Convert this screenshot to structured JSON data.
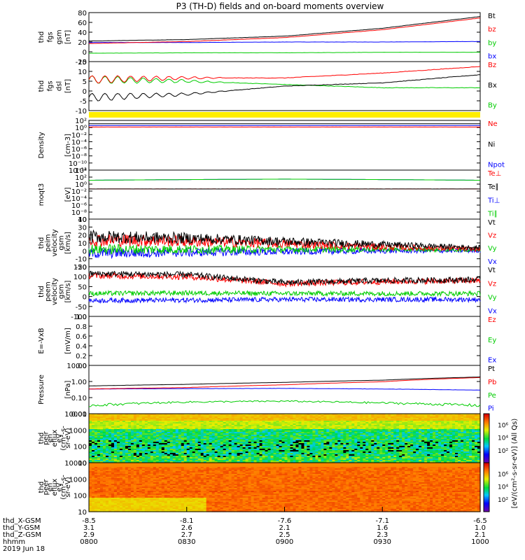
{
  "title": "P3 (TH-D) fields and on-board moments overview",
  "colors": {
    "black": "#000000",
    "red": "#ff0000",
    "green": "#00cc00",
    "blue": "#0000ff",
    "yellow": "#ffee00"
  },
  "panels": [
    {
      "id": "fgs-gsm",
      "ylabel": [
        "thd",
        "fgs",
        "gsm",
        "[nT]"
      ],
      "ticks": [
        "80",
        "60",
        "40",
        "20",
        "0",
        "-20"
      ],
      "legend": [
        {
          "text": "Bt",
          "color": "#000000"
        },
        {
          "text": "bz",
          "color": "#ff0000"
        },
        {
          "text": "by",
          "color": "#00cc00"
        },
        {
          "text": "bx",
          "color": "#0000ff"
        }
      ]
    },
    {
      "id": "fgs-dsl",
      "ylabel": [
        "thd",
        "fgs",
        "dsl",
        "[nT]"
      ],
      "ticks": [
        "15",
        "10",
        "5",
        "0",
        "-5",
        "-10"
      ],
      "legend": [
        {
          "text": "Bz",
          "color": "#ff0000"
        },
        {
          "text": "Bx",
          "color": "#000000"
        },
        {
          "text": "By",
          "color": "#00cc00"
        }
      ]
    },
    {
      "id": "density",
      "ylabel": [
        "Density",
        "[cm-3]"
      ],
      "ticks": [
        "10²",
        "10⁰",
        "10⁻²",
        "10⁻⁴",
        "10⁻⁶",
        "10⁻⁸",
        "10⁻¹⁰",
        "10⁻¹²"
      ],
      "legend": [
        {
          "text": "Ne",
          "color": "#ff0000"
        },
        {
          "text": "Ni",
          "color": "#000000"
        },
        {
          "text": "Npot",
          "color": "#0000ff"
        }
      ]
    },
    {
      "id": "temperature",
      "ylabel": [
        "moqt3",
        "[eV]"
      ],
      "ticks": [
        "10⁴",
        "10²",
        "10⁰",
        "10⁻²",
        "10⁻⁴",
        "10⁻⁶",
        "10⁻⁸",
        "10"
      ],
      "legend": [
        {
          "text": "Te⊥",
          "color": "#ff0000"
        },
        {
          "text": "Te∥",
          "color": "#000000"
        },
        {
          "text": "Ti⊥",
          "color": "#0000ff"
        },
        {
          "text": "Ti∥",
          "color": "#00cc00"
        }
      ]
    },
    {
      "id": "peim-velocity",
      "ylabel": [
        "thd",
        "peim",
        "velocity",
        "gsm",
        "[km/s]"
      ],
      "ticks": [
        "40",
        "30",
        "20",
        "10",
        "0",
        "-10",
        "-20"
      ],
      "legend": [
        {
          "text": "Vt",
          "color": "#000000"
        },
        {
          "text": "Vz",
          "color": "#ff0000"
        },
        {
          "text": "Vy",
          "color": "#00cc00"
        },
        {
          "text": "Vx",
          "color": "#0000ff"
        }
      ]
    },
    {
      "id": "peem-velocity",
      "ylabel": [
        "thd",
        "peem",
        "velocity",
        "gsm",
        "[km/s]"
      ],
      "ticks": [
        "150",
        "100",
        "50",
        "0",
        "-50",
        "-100"
      ],
      "legend": [
        {
          "text": "Vt",
          "color": "#000000"
        },
        {
          "text": "Vz",
          "color": "#ff0000"
        },
        {
          "text": "Vy",
          "color": "#00cc00"
        },
        {
          "text": "Vx",
          "color": "#0000ff"
        }
      ]
    },
    {
      "id": "efield",
      "ylabel": [
        "E=-VxB",
        "[mV/m]"
      ],
      "ticks": [
        "1.0",
        "0.8",
        "0.6",
        "0.4",
        "0.2",
        "0.0"
      ],
      "legend": [
        {
          "text": "Ez",
          "color": "#ff0000"
        },
        {
          "text": "Ey",
          "color": "#00cc00"
        },
        {
          "text": "Ex",
          "color": "#0000ff"
        }
      ]
    },
    {
      "id": "pressure",
      "ylabel": [
        "Pressure",
        "[nPa]"
      ],
      "ticks": [
        "10.00",
        "1.00",
        "0.10",
        "0.01"
      ],
      "legend": [
        {
          "text": "Pt",
          "color": "#000000"
        },
        {
          "text": "Pb",
          "color": "#ff0000"
        },
        {
          "text": "Pe",
          "color": "#00cc00"
        },
        {
          "text": "Pi",
          "color": "#0000ff"
        }
      ]
    },
    {
      "id": "peir",
      "ylabel": [
        "thd",
        "peir",
        "en",
        "eflux",
        "eV",
        "(cm²-s-",
        "sr-eV)"
      ],
      "ticks": [
        "10000",
        "1000",
        "100",
        "10"
      ],
      "legend": []
    },
    {
      "id": "peer",
      "ylabel": [
        "thd",
        "peer",
        "en",
        "eflux",
        "eV",
        "(cm²-s-",
        "sr-eV)"
      ],
      "ticks": [
        "10000",
        "1000",
        "100",
        "10"
      ],
      "legend": []
    }
  ],
  "colorbars": [
    {
      "ticks": [
        "10⁶",
        "10⁴",
        "10²"
      ]
    },
    {
      "ticks": [
        "10⁶",
        "10⁴",
        "10²"
      ]
    }
  ],
  "colorbar_label": "[eV/(cm²-s-sr-eV)] (All Qs)",
  "x_axis": {
    "rows": [
      {
        "label": "thd_X-GSM",
        "values": [
          "-8.5",
          "-8.1",
          "-7.6",
          "-7.1",
          "-6.5"
        ]
      },
      {
        "label": "thd_Y-GSM",
        "values": [
          "3.1",
          "2.6",
          "2.1",
          "1.6",
          "1.0"
        ]
      },
      {
        "label": "thd_Z-GSM",
        "values": [
          "2.9",
          "2.7",
          "2.5",
          "2.3",
          "2.1"
        ]
      },
      {
        "label": "hhmm",
        "values": [
          "0800",
          "0830",
          "0900",
          "0930",
          "1000"
        ]
      }
    ],
    "date": "2019 Jun 18"
  },
  "chart_data": {
    "type": "line",
    "title": "P3 (TH-D) fields and on-board moments overview",
    "x_time": [
      "0800",
      "0830",
      "0900",
      "0930",
      "1000"
    ],
    "panels": [
      {
        "name": "fgs gsm [nT]",
        "ylim": [
          -20,
          80
        ],
        "series": [
          {
            "name": "Bt",
            "x": [
              0,
              30,
              60,
              90,
              120
            ],
            "values": [
              22,
              25,
              32,
              48,
              72
            ]
          },
          {
            "name": "bz",
            "x": [
              0,
              30,
              60,
              90,
              120
            ],
            "values": [
              17,
              21,
              29,
              45,
              69
            ]
          },
          {
            "name": "by",
            "x": [
              0,
              30,
              60,
              90,
              120
            ],
            "values": [
              -3,
              -2,
              -2,
              -1,
              -1
            ]
          },
          {
            "name": "bx",
            "x": [
              0,
              30,
              60,
              90,
              120
            ],
            "values": [
              19,
              19,
              20,
              20,
              21
            ]
          }
        ]
      },
      {
        "name": "fgs dsl [nT]",
        "ylim": [
          -15,
          15
        ],
        "series": [
          {
            "name": "Bz",
            "x": [
              0,
              30,
              60,
              90,
              120
            ],
            "values": [
              4,
              5,
              5,
              8,
              12
            ]
          },
          {
            "name": "Bx",
            "x": [
              0,
              30,
              60,
              90,
              120
            ],
            "values": [
              -7,
              -5,
              0,
              2,
              7
            ]
          },
          {
            "name": "By",
            "x": [
              0,
              30,
              60,
              90,
              120
            ],
            "values": [
              4,
              3,
              1,
              -1,
              -1
            ]
          }
        ]
      },
      {
        "name": "Density [cm-3]",
        "scale": "log",
        "ylim": [
          1e-13,
          100.0
        ],
        "series": [
          {
            "name": "Ne",
            "x": [
              0,
              30,
              60,
              90,
              120
            ],
            "values": [
              1,
              1,
              1,
              1,
              1
            ]
          },
          {
            "name": "Ni",
            "x": [
              0,
              30,
              60,
              90,
              120
            ],
            "values": [
              10,
              10,
              10,
              10,
              10
            ]
          },
          {
            "name": "Npot",
            "x": [
              0,
              30,
              60,
              90,
              120
            ],
            "values": [
              3,
              3,
              3,
              3,
              3
            ]
          }
        ]
      },
      {
        "name": "moqt3 [eV]",
        "scale": "log",
        "ylim": [
          1e-08,
          100000.0
        ],
        "series": [
          {
            "name": "Te⊥",
            "x": [
              0,
              30,
              60,
              90,
              120
            ],
            "values": [
              1,
              1,
              1,
              1,
              1
            ]
          },
          {
            "name": "Te∥",
            "x": [
              0,
              30,
              60,
              90,
              120
            ],
            "values": [
              1,
              1,
              1,
              1,
              1
            ]
          },
          {
            "name": "Ti⊥",
            "x": [
              0,
              30,
              60,
              90,
              120
            ],
            "values": [
              200,
              300,
              400,
              300,
              200
            ]
          },
          {
            "name": "Ti∥",
            "x": [
              0,
              30,
              60,
              90,
              120
            ],
            "values": [
              200,
              300,
              400,
              300,
              200
            ]
          }
        ]
      },
      {
        "name": "peim velocity gsm [km/s]",
        "ylim": [
          -20,
          40
        ],
        "series": [
          {
            "name": "Vt",
            "x": [
              0,
              30,
              60,
              90,
              120
            ],
            "values": [
              18,
              16,
              12,
              8,
              4
            ]
          },
          {
            "name": "Vz",
            "x": [
              0,
              30,
              60,
              90,
              120
            ],
            "values": [
              14,
              12,
              9,
              5,
              2
            ]
          },
          {
            "name": "Vy",
            "x": [
              0,
              30,
              60,
              90,
              120
            ],
            "values": [
              2,
              2,
              2,
              2,
              1
            ]
          },
          {
            "name": "Vx",
            "x": [
              0,
              30,
              60,
              90,
              120
            ],
            "values": [
              -3,
              -2,
              -1,
              0,
              0
            ]
          }
        ]
      },
      {
        "name": "peem velocity gsm [km/s]",
        "ylim": [
          -100,
          150
        ],
        "series": [
          {
            "name": "Vt",
            "x": [
              0,
              30,
              60,
              90,
              120
            ],
            "values": [
              115,
              110,
              70,
              80,
              85
            ]
          },
          {
            "name": "Vz",
            "x": [
              0,
              30,
              60,
              90,
              120
            ],
            "values": [
              105,
              100,
              65,
              75,
              80
            ]
          },
          {
            "name": "Vy",
            "x": [
              0,
              30,
              60,
              90,
              120
            ],
            "values": [
              15,
              18,
              15,
              15,
              15
            ]
          },
          {
            "name": "Vx",
            "x": [
              0,
              30,
              60,
              90,
              120
            ],
            "values": [
              -20,
              -18,
              -15,
              -15,
              -15
            ]
          }
        ]
      },
      {
        "name": "E=-VxB [mV/m]",
        "ylim": [
          0,
          1
        ],
        "series": []
      },
      {
        "name": "Pressure [nPa]",
        "scale": "log",
        "ylim": [
          0.005,
          15
        ],
        "series": [
          {
            "name": "Pt",
            "x": [
              0,
              30,
              60,
              90,
              120
            ],
            "values": [
              0.5,
              0.65,
              0.9,
              1.3,
              2.2
            ]
          },
          {
            "name": "Pb",
            "x": [
              0,
              30,
              60,
              90,
              120
            ],
            "values": [
              0.3,
              0.38,
              0.6,
              1.0,
              2.0
            ]
          },
          {
            "name": "Pe",
            "x": [
              0,
              30,
              60,
              90,
              120
            ],
            "values": [
              0.02,
              0.035,
              0.04,
              0.03,
              0.02
            ]
          },
          {
            "name": "Pi",
            "x": [
              0,
              30,
              60,
              90,
              120
            ],
            "values": [
              0.3,
              0.32,
              0.33,
              0.3,
              0.25
            ]
          }
        ]
      }
    ]
  }
}
